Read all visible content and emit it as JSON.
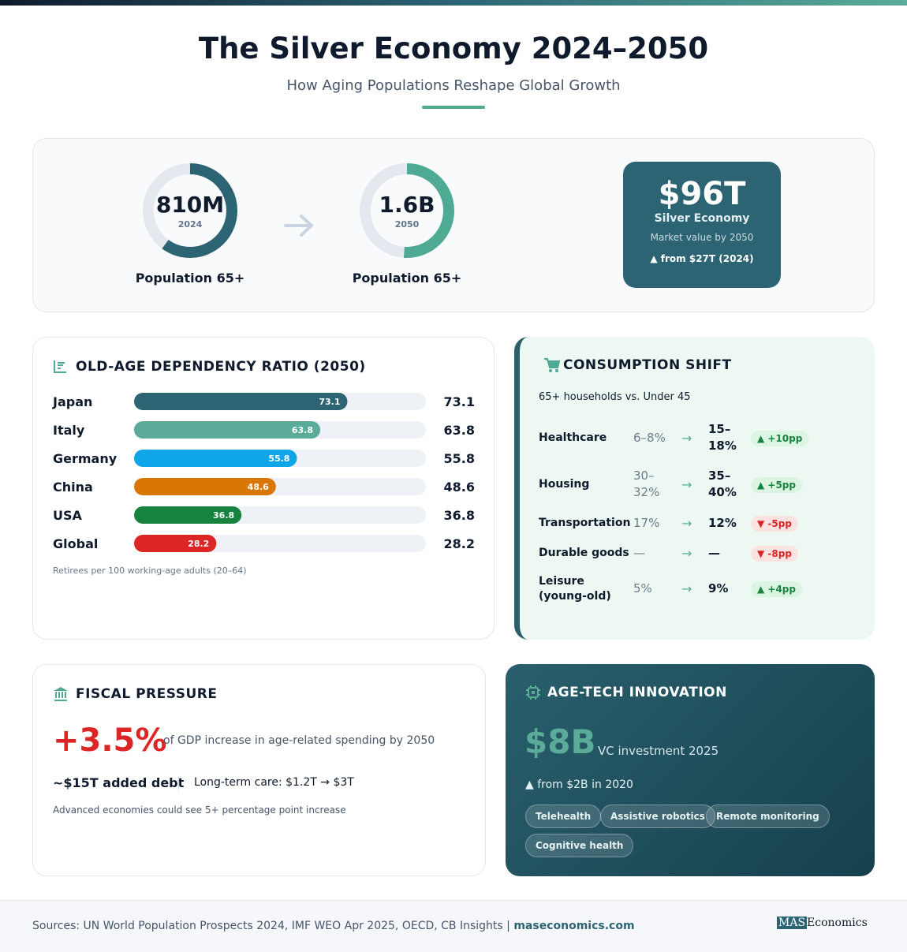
{
  "header": {
    "title": "The Silver Economy 2024–2050",
    "subtitle": "How Aging Populations Reshape Global Growth"
  },
  "stats": [
    {
      "value": "810M",
      "year": "2024",
      "label": "Population 65+"
    },
    {
      "value": "1.6B",
      "year": "2050",
      "label": "Population 65+"
    }
  ],
  "highlight": {
    "value": "$96T",
    "label": "Silver Economy",
    "note": "Market value by 2050",
    "change": "▲ from $27T (2024)"
  },
  "chart_data": {
    "type": "bar",
    "title": "OLD-AGE DEPENDENCY RATIO (2050)",
    "categories": [
      "Japan",
      "Italy",
      "Germany",
      "China",
      "USA",
      "Global"
    ],
    "values": [
      73.1,
      63.8,
      55.8,
      48.6,
      36.8,
      28.2
    ],
    "colors": [
      "#2c6474",
      "#5aac98",
      "#0ea5e9",
      "#d97706",
      "#16843f",
      "#dc2626"
    ],
    "xlim": [
      0,
      100
    ],
    "note": "Retirees per 100 working-age adults (20–64)"
  },
  "consumption": {
    "title": "CONSUMPTION SHIFT",
    "subtitle": "65+ households vs. Under 45",
    "rows": [
      {
        "label": "Healthcare",
        "before": "6–8%",
        "after": "15–18%",
        "change": "▲ +10pp"
      },
      {
        "label": "Housing",
        "before": "30–32%",
        "after": "35–40%",
        "change": "▲ +5pp"
      },
      {
        "label": "Transportation",
        "before": "17%",
        "after": "12%",
        "change": "▼ -5pp"
      },
      {
        "label": "Durable goods",
        "before": "—",
        "after": "—",
        "change": "▼ -8pp"
      },
      {
        "label": "Leisure (young-old)",
        "before": "5%",
        "after": "9%",
        "change": "▲ +4pp"
      }
    ]
  },
  "fiscal": {
    "title": "FISCAL PRESSURE",
    "value": "+3.5%",
    "value_text": "of GDP increase in age-related spending by 2050",
    "debt": "~$15T added debt",
    "care": "Long-term care: $1.2T → $3T",
    "note": "Advanced economies could see 5+ percentage point increase"
  },
  "agetech": {
    "title": "AGE-TECH INNOVATION",
    "value": "$8B",
    "value_text": "VC investment 2025",
    "change": "▲ from $2B in 2020",
    "tags": [
      "Telehealth",
      "Assistive robotics",
      "Remote monitoring",
      "Cognitive health"
    ]
  },
  "footer": {
    "sources": "Sources: UN World Population Prospects 2024, IMF WEO Apr 2025, OECD, CB Insights |",
    "link": "maseconomics.com",
    "logo_mark": "MAS",
    "logo_text": "Economics"
  }
}
